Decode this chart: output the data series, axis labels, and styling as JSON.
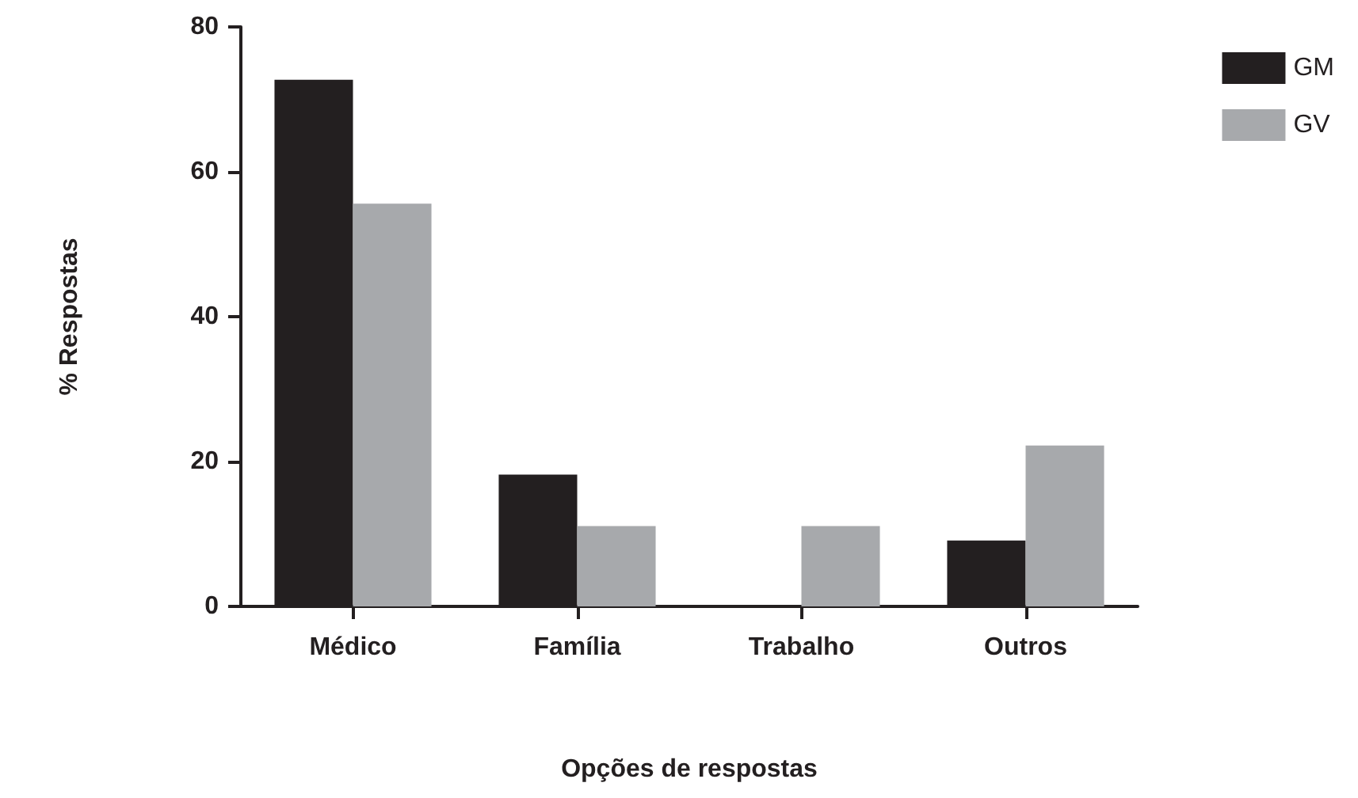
{
  "chart_data": {
    "type": "bar",
    "xlabel": "Opções de respostas",
    "ylabel": "% Respostas",
    "categories": [
      "Médico",
      "Família",
      "Trabalho",
      "Outros"
    ],
    "series": [
      {
        "name": "GM",
        "color": "#231f20",
        "values": [
          72.7,
          18.2,
          0,
          9.1
        ]
      },
      {
        "name": "GV",
        "color": "#a7a9ac",
        "values": [
          55.6,
          11.1,
          11.1,
          22.2
        ]
      }
    ],
    "ylim": [
      0,
      80
    ],
    "yticks": [
      0,
      20,
      40,
      60,
      80
    ],
    "grid": false,
    "legend": "top right"
  }
}
